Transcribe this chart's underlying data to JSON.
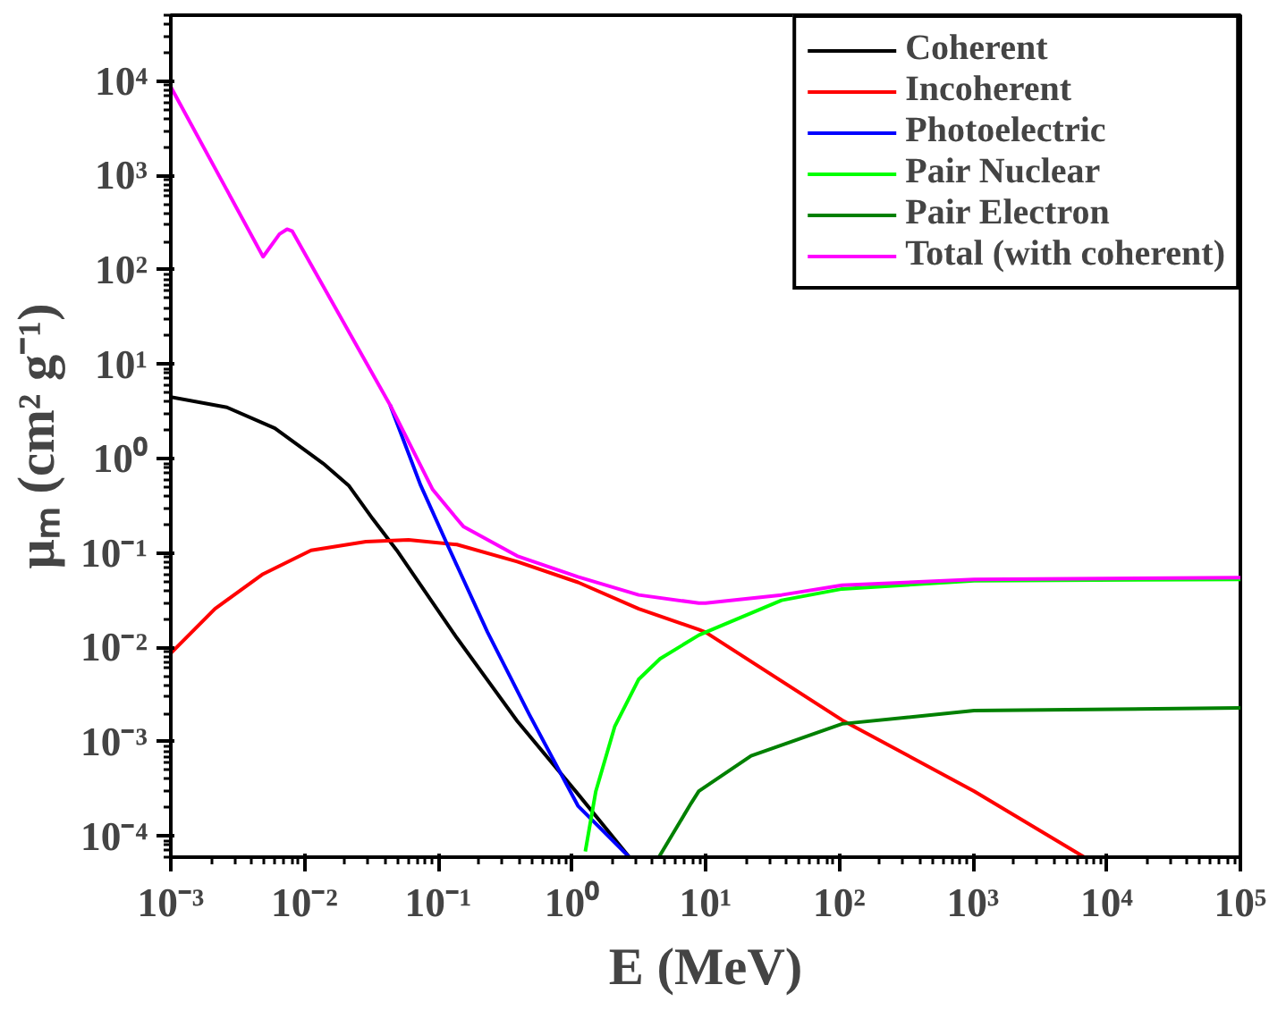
{
  "chart_data": {
    "type": "line",
    "xlabel": "E (MeV)",
    "ylabel": "μₘ (cm² g⁻¹)",
    "log": "xy",
    "grid": false,
    "legend": "top right",
    "line_style": "solid",
    "xlim": [
      0.001,
      100000
    ],
    "ylim": [
      6e-05,
      50000
    ],
    "xticks": [
      {
        "value": 0.001,
        "label": "10⁻³"
      },
      {
        "value": 0.01,
        "label": "10⁻²"
      },
      {
        "value": 0.1,
        "label": "10⁻¹"
      },
      {
        "value": 1,
        "label": "10⁰"
      },
      {
        "value": 10,
        "label": "10¹"
      },
      {
        "value": 100,
        "label": "10²"
      },
      {
        "value": 1000,
        "label": "10³"
      },
      {
        "value": 10000,
        "label": "10⁴"
      },
      {
        "value": 100000,
        "label": "10⁵"
      }
    ],
    "yticks": [
      {
        "value": 0.0001,
        "label": "10⁻⁴"
      },
      {
        "value": 0.001,
        "label": "10⁻³"
      },
      {
        "value": 0.01,
        "label": "10⁻²"
      },
      {
        "value": 0.1,
        "label": "10⁻¹"
      },
      {
        "value": 1,
        "label": "10⁰"
      },
      {
        "value": 10,
        "label": "10¹"
      },
      {
        "value": 100,
        "label": "10²"
      },
      {
        "value": 1000,
        "label": "10³"
      },
      {
        "value": 10000,
        "label": "10⁴"
      }
    ],
    "series": [
      {
        "name": "Coherent",
        "color": "#000000",
        "x": [
          0.001,
          0.00263,
          0.006,
          0.0138,
          0.0214,
          0.0324,
          0.049,
          0.138,
          0.39,
          1.11,
          2.69
        ],
        "values": [
          4.5,
          3.5,
          2.1,
          0.89,
          0.52,
          0.23,
          0.107,
          0.0126,
          0.00166,
          0.00028,
          6e-05
        ]
      },
      {
        "name": "Incoherent",
        "color": "#ff0000",
        "x": [
          0.001,
          0.00214,
          0.0049,
          0.0112,
          0.0288,
          0.06,
          0.138,
          0.39,
          1.11,
          3.16,
          8.9,
          10,
          105,
          1020,
          6800
        ],
        "values": [
          0.0087,
          0.0257,
          0.06,
          0.107,
          0.132,
          0.138,
          0.123,
          0.081,
          0.049,
          0.0257,
          0.0155,
          0.0145,
          0.0017,
          0.0003,
          6e-05
        ]
      },
      {
        "name": "Photoelectric",
        "color": "#0000ff",
        "x": [
          0.0437,
          0.074,
          0.117,
          0.234,
          0.48,
          1.11,
          2.69
        ],
        "values": [
          3.7,
          0.52,
          0.123,
          0.0145,
          0.00195,
          0.00021,
          6e-05
        ]
      },
      {
        "name": "Pair Nuclear",
        "color": "#00ff00",
        "x": [
          1.26,
          1.51,
          2.09,
          3.16,
          4.57,
          8.9,
          10,
          37,
          105,
          1020,
          100000
        ],
        "values": [
          6.9e-05,
          0.0003,
          0.00145,
          0.0046,
          0.0076,
          0.0135,
          0.0145,
          0.0316,
          0.0417,
          0.051,
          0.0525
        ]
      },
      {
        "name": "Pair Electron",
        "color": "#008000",
        "x": [
          4.47,
          7.8,
          8.9,
          21.9,
          105,
          1020,
          100000
        ],
        "values": [
          6e-05,
          0.000224,
          0.0003,
          0.00071,
          0.00155,
          0.00214,
          0.00229
        ]
      },
      {
        "name": "Total (with coherent)",
        "color": "#ff00ff",
        "x": [
          0.001,
          0.0049,
          0.0065,
          0.0074,
          0.0081,
          0.0437,
          0.091,
          0.138,
          0.155,
          0.39,
          1.11,
          3.16,
          8.9,
          10,
          37,
          105,
          1020,
          100000
        ],
        "values": [
          8700,
          138,
          240,
          270,
          257,
          3.7,
          0.47,
          0.23,
          0.19,
          0.093,
          0.056,
          0.036,
          0.0295,
          0.0295,
          0.036,
          0.0457,
          0.0525,
          0.055
        ]
      }
    ]
  }
}
